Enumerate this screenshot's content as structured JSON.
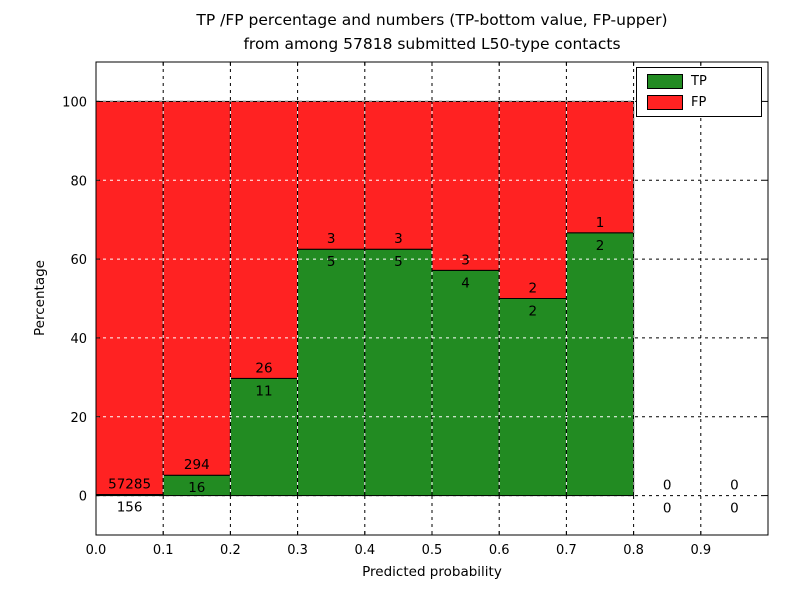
{
  "title_line1": "TP /FP percentage and numbers (TP-bottom value, FP-upper)",
  "title_line2": "from among 57818 submitted L50-type contacts",
  "axes": {
    "x_label": "Predicted probability",
    "y_label": "Percentage"
  },
  "legend": {
    "position": "upper right",
    "items": [
      {
        "label": "TP",
        "color": "#228b22"
      },
      {
        "label": "FP",
        "color": "#ff2222"
      }
    ]
  },
  "chart_data": {
    "type": "bar",
    "stacked": true,
    "note": "Each bin bar is normalized to 100%; green bottom = TP share, red top = FP share; numeric labels show raw counts (TP below boundary, FP above)",
    "total_submitted": 57818,
    "categories": [
      0.0,
      0.1,
      0.2,
      0.3,
      0.4,
      0.5,
      0.6,
      0.7,
      0.8,
      0.9
    ],
    "bin_width": 0.1,
    "series": [
      {
        "name": "TP",
        "color": "#228b22",
        "counts": [
          156,
          16,
          11,
          5,
          5,
          4,
          2,
          2,
          0,
          0
        ]
      },
      {
        "name": "FP",
        "color": "#ff2222",
        "counts": [
          57285,
          294,
          26,
          3,
          3,
          3,
          2,
          1,
          0,
          0
        ]
      }
    ],
    "tp_percent": [
      0.27,
      5.16,
      29.73,
      62.5,
      62.5,
      57.14,
      50.0,
      66.67,
      0,
      0
    ],
    "x_ticks": [
      0.0,
      0.1,
      0.2,
      0.3,
      0.4,
      0.5,
      0.6,
      0.7,
      0.8,
      0.9
    ],
    "y_ticks": [
      0,
      20,
      40,
      60,
      80,
      100
    ],
    "xlim": [
      0.0,
      1.0
    ],
    "ylim": [
      -10,
      110
    ],
    "grid": "dashed"
  }
}
